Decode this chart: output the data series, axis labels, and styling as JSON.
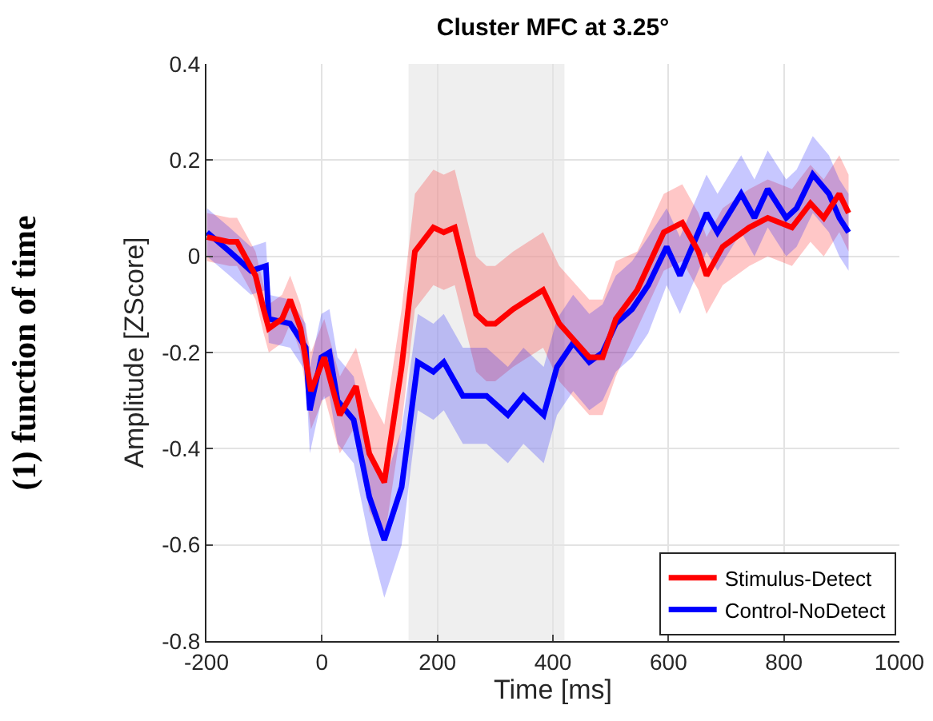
{
  "chart_data": {
    "type": "line",
    "title": "Cluster MFC at 3.25°",
    "xlabel": "Time [ms]",
    "ylabel": "Amplitude [ZScore]",
    "annotations": [
      "(1) function of time"
    ],
    "xlim": [
      -200,
      1000
    ],
    "xticks": [
      -200,
      0,
      200,
      400,
      600,
      800,
      1000
    ],
    "ylim": [
      -0.8,
      0.4
    ],
    "yticks": [
      -0.8,
      -0.6,
      -0.4,
      -0.2,
      0,
      0.2,
      0.4
    ],
    "grid": true,
    "legend": "bottom right",
    "line_style": "solid",
    "bands": [
      {
        "axis": "x",
        "from": 150,
        "to": 420,
        "color": "#efefef"
      }
    ],
    "series": [
      {
        "name": "Stimulus-Detect",
        "color": "#ff0000",
        "x": [
          -199,
          -160,
          -147,
          -115,
          -101,
          -92,
          -69,
          -55,
          -37,
          -19,
          4,
          31,
          59,
          82,
          108,
          138,
          161,
          193,
          211,
          230,
          267,
          285,
          300,
          331,
          383,
          411,
          463,
          486,
          509,
          546,
          592,
          624,
          652,
          666,
          694,
          740,
          772,
          814,
          846,
          869,
          896,
          912
        ],
        "values": [
          0.04,
          0.03,
          0.03,
          -0.04,
          -0.11,
          -0.15,
          -0.13,
          -0.09,
          -0.15,
          -0.28,
          -0.21,
          -0.33,
          -0.27,
          -0.41,
          -0.47,
          -0.23,
          0.01,
          0.06,
          0.05,
          0.06,
          -0.12,
          -0.14,
          -0.14,
          -0.11,
          -0.07,
          -0.14,
          -0.21,
          -0.21,
          -0.13,
          -0.07,
          0.05,
          0.07,
          0.01,
          -0.04,
          0.02,
          0.06,
          0.08,
          0.06,
          0.11,
          0.08,
          0.13,
          0.09
        ],
        "lower": [
          -0.01,
          -0.02,
          -0.02,
          -0.09,
          -0.16,
          -0.2,
          -0.18,
          -0.14,
          -0.2,
          -0.36,
          -0.29,
          -0.41,
          -0.35,
          -0.53,
          -0.59,
          -0.35,
          -0.11,
          -0.06,
          -0.07,
          -0.06,
          -0.24,
          -0.26,
          -0.26,
          -0.23,
          -0.19,
          -0.26,
          -0.33,
          -0.33,
          -0.25,
          -0.15,
          -0.03,
          -0.01,
          -0.07,
          -0.12,
          -0.06,
          -0.02,
          0,
          -0.02,
          0.03,
          0,
          0.05,
          0.01
        ],
        "upper": [
          0.09,
          0.08,
          0.08,
          0.01,
          -0.06,
          -0.1,
          -0.08,
          -0.04,
          -0.1,
          -0.2,
          -0.13,
          -0.25,
          -0.19,
          -0.29,
          -0.35,
          -0.11,
          0.13,
          0.18,
          0.17,
          0.18,
          0,
          -0.02,
          -0.02,
          0.01,
          0.05,
          -0.02,
          -0.09,
          -0.09,
          -0.01,
          0.01,
          0.13,
          0.15,
          0.09,
          0.04,
          0.1,
          0.14,
          0.16,
          0.14,
          0.19,
          0.16,
          0.21,
          0.17
        ]
      },
      {
        "name": "Control-NoDetect",
        "color": "#0000ff",
        "x": [
          -199,
          -160,
          -123,
          -97,
          -92,
          -55,
          -28,
          -21,
          -1,
          13,
          27,
          55,
          82,
          108,
          138,
          166,
          193,
          211,
          244,
          285,
          322,
          349,
          384,
          407,
          435,
          463,
          486,
          509,
          537,
          565,
          597,
          620,
          666,
          685,
          726,
          749,
          772,
          804,
          822,
          850,
          878,
          896,
          912
        ],
        "values": [
          0.05,
          0.01,
          -0.03,
          -0.02,
          -0.13,
          -0.14,
          -0.19,
          -0.32,
          -0.21,
          -0.2,
          -0.3,
          -0.34,
          -0.5,
          -0.59,
          -0.48,
          -0.22,
          -0.24,
          -0.22,
          -0.29,
          -0.29,
          -0.33,
          -0.29,
          -0.33,
          -0.23,
          -0.18,
          -0.22,
          -0.2,
          -0.14,
          -0.11,
          -0.06,
          0.02,
          -0.04,
          0.09,
          0.05,
          0.13,
          0.08,
          0.14,
          0.08,
          0.1,
          0.17,
          0.13,
          0.08,
          0.05
        ],
        "lower": [
          0,
          -0.04,
          -0.08,
          -0.07,
          -0.18,
          -0.19,
          -0.24,
          -0.41,
          -0.3,
          -0.29,
          -0.39,
          -0.43,
          -0.59,
          -0.71,
          -0.6,
          -0.32,
          -0.34,
          -0.32,
          -0.39,
          -0.39,
          -0.43,
          -0.39,
          -0.43,
          -0.33,
          -0.28,
          -0.32,
          -0.3,
          -0.24,
          -0.21,
          -0.16,
          -0.06,
          -0.12,
          0.01,
          -0.03,
          0.05,
          0,
          0.06,
          0,
          0.02,
          0.09,
          0.05,
          0,
          -0.03
        ],
        "upper": [
          0.1,
          0.06,
          0.02,
          0.03,
          -0.08,
          -0.09,
          -0.14,
          -0.23,
          -0.12,
          -0.11,
          -0.21,
          -0.25,
          -0.41,
          -0.47,
          -0.36,
          -0.12,
          -0.14,
          -0.12,
          -0.19,
          -0.19,
          -0.23,
          -0.19,
          -0.23,
          -0.13,
          -0.08,
          -0.12,
          -0.1,
          -0.04,
          -0.01,
          0.04,
          0.1,
          0.04,
          0.17,
          0.13,
          0.21,
          0.16,
          0.22,
          0.16,
          0.18,
          0.25,
          0.21,
          0.16,
          0.13
        ]
      }
    ]
  }
}
